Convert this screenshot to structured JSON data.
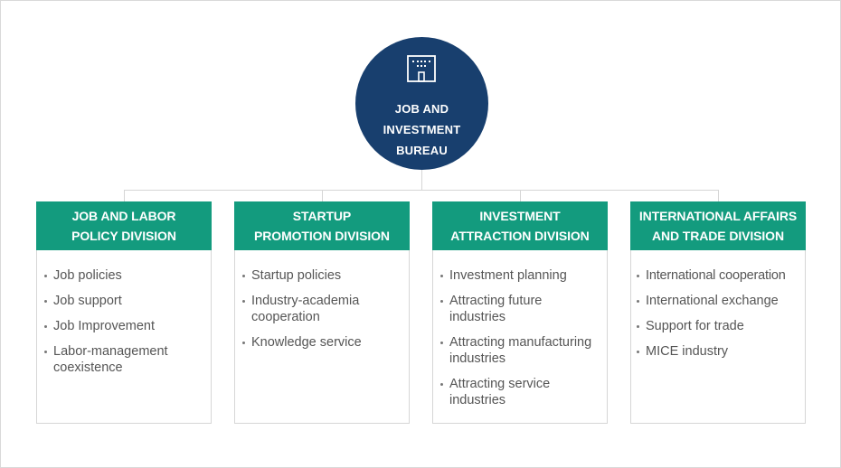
{
  "bureau": {
    "icon": "building-icon",
    "label": "JOB AND\nINVESTMENT\nBUREAU",
    "color": "#183f6e"
  },
  "colors": {
    "division_header": "#139b7e",
    "border": "#d6d6d6",
    "item_text": "#555555"
  },
  "divisions": [
    {
      "title": "JOB AND LABOR\nPOLICY DIVISION",
      "items": [
        "Job policies",
        "Job support",
        "Job Improvement",
        "Labor-management coexistence"
      ]
    },
    {
      "title": "STARTUP\nPROMOTION DIVISION",
      "items": [
        "Startup policies",
        "Industry-academia cooperation",
        "Knowledge service"
      ]
    },
    {
      "title": "INVESTMENT\nATTRACTION DIVISION",
      "items": [
        "Investment planning",
        "Attracting future industries",
        "Attracting manufacturing industries",
        "Attracting service industries"
      ]
    },
    {
      "title": "INTERNATIONAL AFFAIRS\nAND TRADE DIVISION",
      "items": [
        "International cooperation",
        "International exchange",
        "Support for trade",
        "MICE industry"
      ]
    }
  ]
}
